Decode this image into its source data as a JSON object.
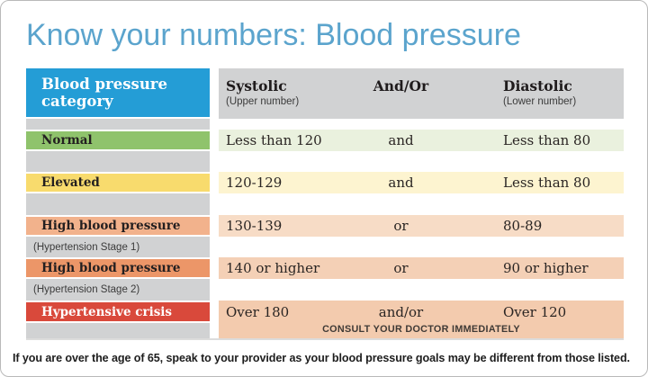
{
  "title": "Know your numbers: Blood pressure",
  "table": {
    "header": {
      "category": "Blood pressure category",
      "systolic": "Systolic",
      "systolic_sub": "(Upper number)",
      "connector": "And/Or",
      "diastolic": "Diastolic",
      "diastolic_sub": "(Lower number)"
    },
    "rows": [
      {
        "category": "Normal",
        "systolic": "Less than 120",
        "connector": "and",
        "diastolic": "Less than 80"
      },
      {
        "category": "Elevated",
        "systolic": "120-129",
        "connector": "and",
        "diastolic": "Less than 80"
      },
      {
        "category": "High blood pressure",
        "stage": "(Hypertension Stage 1)",
        "systolic": "130-139",
        "connector": "or",
        "diastolic": "80-89"
      },
      {
        "category": "High blood pressure",
        "stage": "(Hypertension Stage 2)",
        "systolic": "140 or higher",
        "connector": "or",
        "diastolic": "90 or higher"
      },
      {
        "category": "Hypertensive crisis",
        "systolic": "Over 180",
        "connector": "and/or",
        "diastolic": "Over 120",
        "note": "CONSULT YOUR DOCTOR IMMEDIATELY"
      }
    ]
  },
  "footnote": "If you are over the age of 65, speak to your provider as your blood pressure goals may be different from those listed.",
  "colors": {
    "title_blue": "#5ba4cd",
    "header_blue": "#249dd6",
    "column_gray": "#d1d2d3",
    "normal_green": "#8fc36c",
    "normal_green_light": "#eaf1de",
    "elevated_yellow": "#f8db6d",
    "elevated_yellow_light": "#fdf4d0",
    "stage1_orange": "#f2b28c",
    "stage1_orange_light": "#f7dcc6",
    "stage2_orange": "#ec9668",
    "stage2_orange_light": "#f4d0b6",
    "crisis_red": "#d9493b",
    "crisis_red_light": "#f3cbae"
  },
  "chart_data": {
    "type": "table",
    "title": "Know your numbers: Blood pressure",
    "columns": [
      "Blood pressure category",
      "Systolic (Upper number)",
      "And/Or",
      "Diastolic (Lower number)"
    ],
    "rows": [
      [
        "Normal",
        "Less than 120",
        "and",
        "Less than 80"
      ],
      [
        "Elevated",
        "120-129",
        "and",
        "Less than 80"
      ],
      [
        "High blood pressure (Hypertension Stage 1)",
        "130-139",
        "or",
        "80-89"
      ],
      [
        "High blood pressure (Hypertension Stage 2)",
        "140 or higher",
        "or",
        "90 or higher"
      ],
      [
        "Hypertensive crisis",
        "Over 180",
        "and/or",
        "Over 120"
      ]
    ],
    "annotations": [
      "CONSULT YOUR DOCTOR IMMEDIATELY",
      "If you are over the age of 65, speak to your provider as your blood pressure goals may be different from those listed."
    ],
    "legend_position": "none",
    "grid": false
  }
}
